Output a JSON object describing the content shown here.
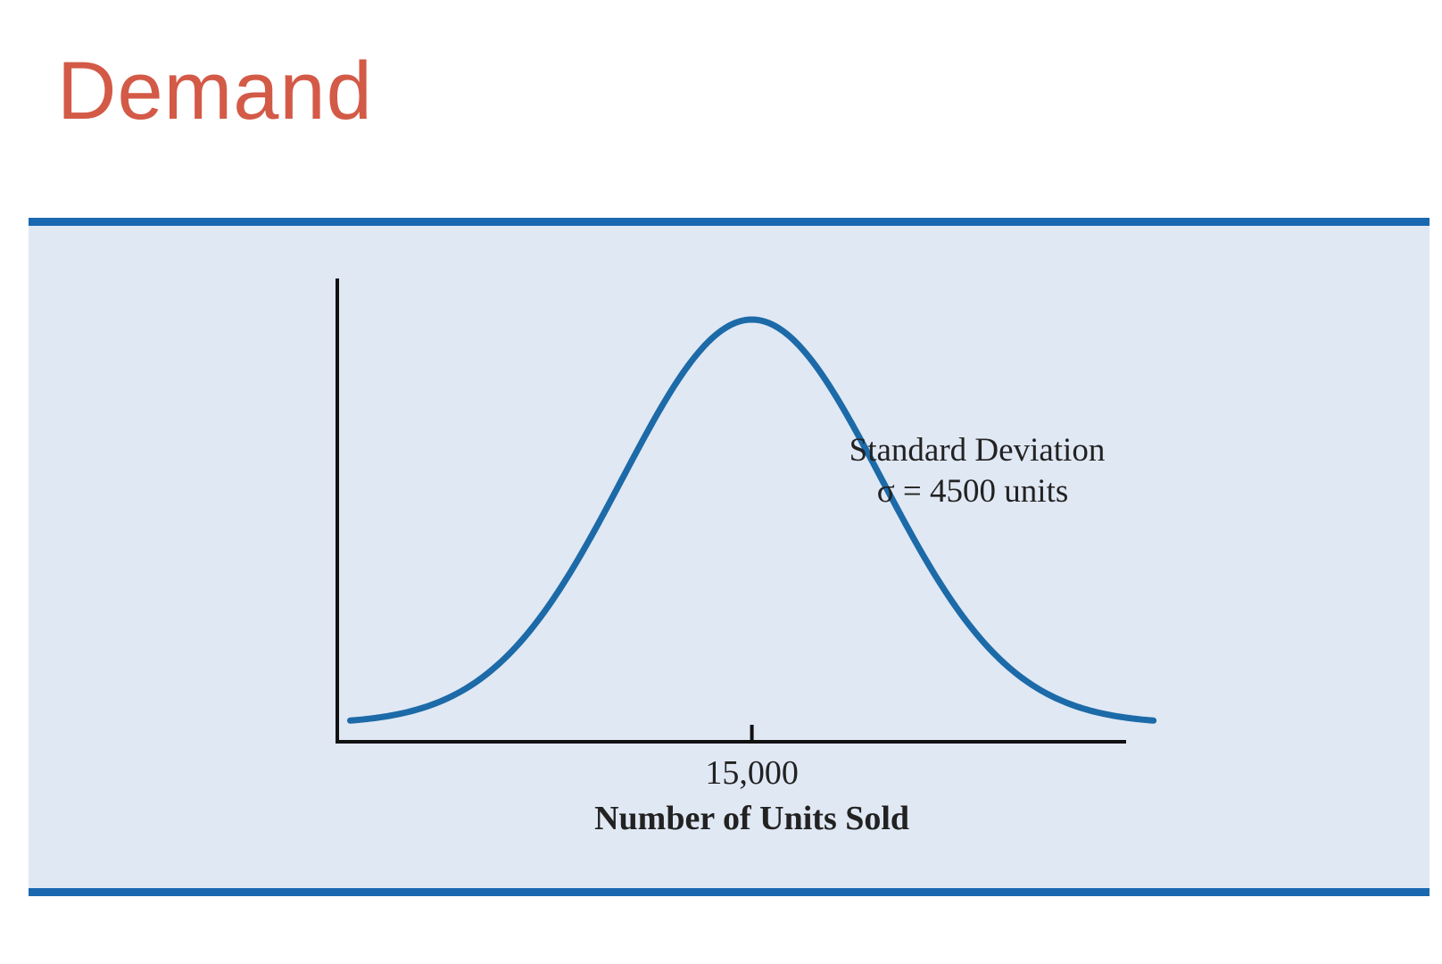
{
  "slide": {
    "title": "Demand"
  },
  "colors": {
    "title": "#d35a47",
    "panel_rule": "#1a68b0",
    "panel_fill": "#e0e8f4",
    "curve": "#1c6aa8",
    "axis": "#111111",
    "text": "#222222"
  },
  "chart_data": {
    "type": "line",
    "title": "",
    "distribution": "normal",
    "mean": 15000,
    "standard_deviation": 4500,
    "xlabel": "Number of Units Sold",
    "ylabel": "",
    "x_ticks": [
      {
        "value": 15000,
        "label": "15,000"
      }
    ],
    "xlim": [
      600,
      28000
    ],
    "annotation": {
      "line1": "Standard Deviation",
      "line2": "σ = 4500 units"
    },
    "grid": false,
    "legend": "none"
  }
}
